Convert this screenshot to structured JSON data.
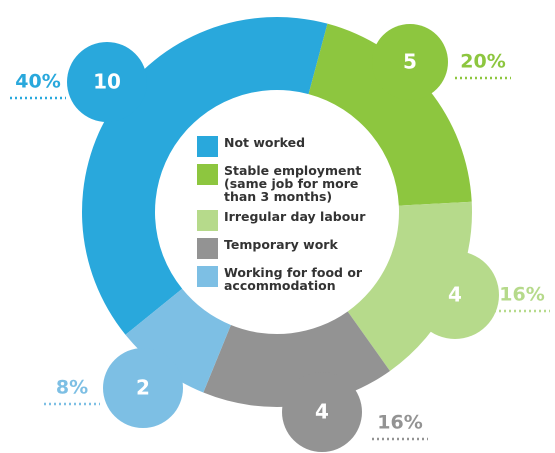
{
  "chart_data": {
    "type": "donut",
    "categories": [
      "Not worked",
      "Stable employment (same job for more than 3 months)",
      "Irregular day labour",
      "Temporary work",
      "Working for food or accommodation"
    ],
    "values": [
      40,
      20,
      16,
      16,
      8
    ],
    "value_labels": [
      "40%",
      "20%",
      "16%",
      "16%",
      "8%"
    ],
    "counts": [
      10,
      5,
      4,
      4,
      2
    ],
    "colors": [
      "#29a8dc",
      "#8dc63f",
      "#b6da8b",
      "#939393",
      "#7dbfe4"
    ]
  }
}
